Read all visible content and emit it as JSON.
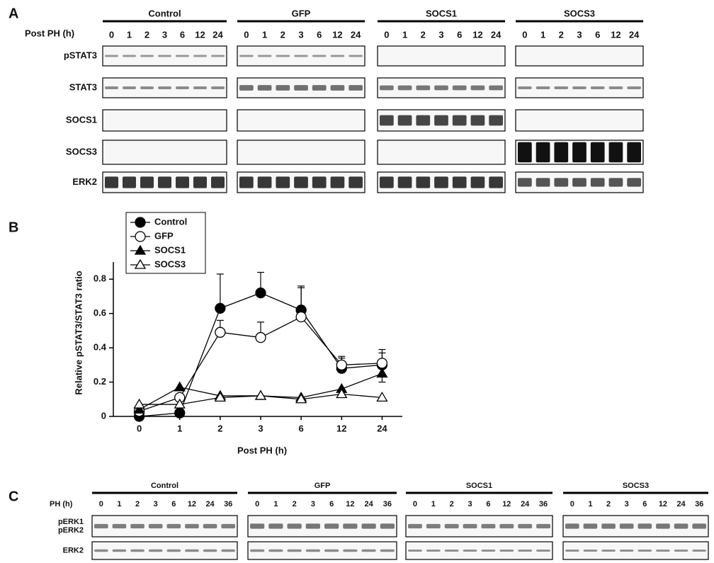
{
  "panel_a": {
    "label": "A",
    "axis_label": "Post PH (h)",
    "groups": [
      {
        "name": "Control",
        "lanes": [
          "0",
          "1",
          "2",
          "3",
          "6",
          "12",
          "24"
        ]
      },
      {
        "name": "GFP",
        "lanes": [
          "0",
          "1",
          "2",
          "3",
          "6",
          "12",
          "24"
        ]
      },
      {
        "name": "SOCS1",
        "lanes": [
          "0",
          "1",
          "2",
          "3",
          "6",
          "12",
          "24"
        ]
      },
      {
        "name": "SOCS3",
        "lanes": [
          "0",
          "1",
          "2",
          "3",
          "6",
          "12",
          "24"
        ]
      }
    ],
    "rows": [
      "pSTAT3",
      "STAT3",
      "SOCS1",
      "SOCS3",
      "ERK2"
    ]
  },
  "panel_b": {
    "label": "B"
  },
  "chart_data": {
    "type": "line",
    "x_label": "Post PH (h)",
    "y_label": "Relative pSTAT3/STAT3 ratio",
    "categories": [
      "0",
      "1",
      "2",
      "3",
      "6",
      "12",
      "24"
    ],
    "ylim": [
      0,
      0.9
    ],
    "yticks": [
      0,
      0.2,
      0.4,
      0.6,
      0.8
    ],
    "legend": "upper left",
    "series": [
      {
        "name": "Control",
        "color": "#000000",
        "fill": "#000000",
        "marker": "circle",
        "values": [
          0.0,
          0.02,
          0.63,
          0.72,
          0.62,
          0.28,
          0.3
        ],
        "errors": [
          null,
          null,
          0.2,
          0.12,
          0.14,
          0.06,
          0.07
        ]
      },
      {
        "name": "GFP",
        "color": "#000000",
        "fill": "#ffffff",
        "marker": "circle",
        "values": [
          0.03,
          0.11,
          0.49,
          0.46,
          0.58,
          0.3,
          0.31
        ],
        "errors": [
          null,
          null,
          0.07,
          0.09,
          0.17,
          0.05,
          0.08
        ]
      },
      {
        "name": "SOCS1",
        "color": "#000000",
        "fill": "#000000",
        "marker": "triangle",
        "values": [
          0.04,
          0.17,
          0.12,
          0.12,
          0.11,
          0.16,
          0.25
        ],
        "errors": [
          null,
          null,
          null,
          null,
          null,
          null,
          0.05
        ]
      },
      {
        "name": "SOCS3",
        "color": "#000000",
        "fill": "#ffffff",
        "marker": "triangle",
        "values": [
          0.07,
          0.07,
          0.11,
          0.12,
          0.1,
          0.13,
          0.11
        ]
      }
    ]
  },
  "panel_c": {
    "label": "C",
    "axis_label": "PH (h)",
    "groups": [
      {
        "name": "Control",
        "lanes": [
          "0",
          "1",
          "2",
          "3",
          "6",
          "12",
          "24",
          "36"
        ]
      },
      {
        "name": "GFP",
        "lanes": [
          "0",
          "1",
          "2",
          "3",
          "6",
          "12",
          "24",
          "36"
        ]
      },
      {
        "name": "SOCS1",
        "lanes": [
          "0",
          "1",
          "2",
          "3",
          "6",
          "12",
          "24",
          "36"
        ]
      },
      {
        "name": "SOCS3",
        "lanes": [
          "0",
          "1",
          "2",
          "3",
          "6",
          "12",
          "24",
          "36"
        ]
      }
    ],
    "rows": [
      [
        "pERK1",
        "pERK2"
      ],
      [
        "ERK2"
      ]
    ]
  }
}
